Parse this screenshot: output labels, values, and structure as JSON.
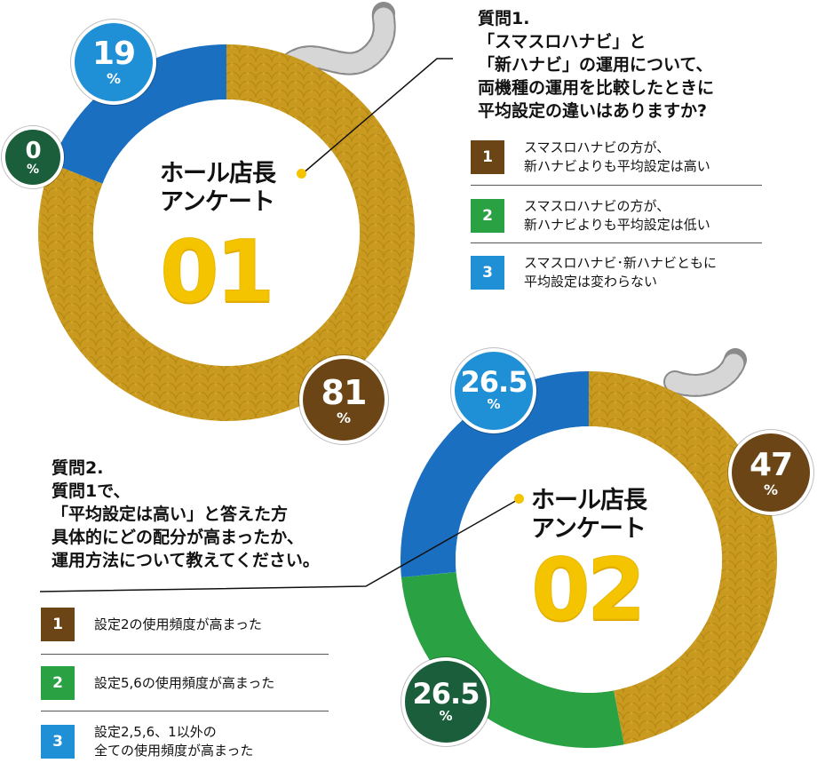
{
  "colors": {
    "gold": "#c99a1f",
    "gold_dark": "#a87c12",
    "blue": "#1a6fc0",
    "green": "#2aa244",
    "dark_green": "#1b5e3b",
    "brown": "#6b4516",
    "cyan": "#1f8fd6",
    "yellow": "#f5c400",
    "gray": "#c8c8c8"
  },
  "chart_data": [
    {
      "type": "pie",
      "title": "ホール店長アンケート",
      "values": [
        81,
        0,
        19
      ],
      "labels": [
        "81",
        "0",
        "19"
      ],
      "unit": "%",
      "center_label": {
        "line1": "ホール店長",
        "line2": "アンケート",
        "number": "01"
      },
      "question": "質問1.\n「スマスロハナビ」と\n「新ハナビ」の運用について、\n両機種の運用を比較したときに\n平均設定の違いはありますか?",
      "options": [
        {
          "num": "1",
          "text": "スマスロハナビの方が、\n新ハナビよりも平均設定は高い"
        },
        {
          "num": "2",
          "text": "スマスロハナビの方が、\n新ハナビよりも平均設定は低い"
        },
        {
          "num": "3",
          "text": "スマスロハナビ･新ハナビともに\n平均設定は変わらない"
        }
      ]
    },
    {
      "type": "pie",
      "title": "ホール店長アンケート",
      "values": [
        47,
        26.5,
        26.5
      ],
      "labels": [
        "47",
        "26.5",
        "26.5"
      ],
      "unit": "%",
      "center_label": {
        "line1": "ホール店長",
        "line2": "アンケート",
        "number": "02"
      },
      "question": "質問2.\n質問1で、\n「平均設定は高い」と答えた方\n具体的にどの配分が高まったか、\n運用方法について教えてください。",
      "options": [
        {
          "num": "1",
          "text": "設定2の使用頻度が高まった"
        },
        {
          "num": "2",
          "text": "設定5,6の使用頻度が高まった"
        },
        {
          "num": "3",
          "text": "設定2,5,6、1以外の\n全ての使用頻度が高まった"
        }
      ]
    }
  ]
}
